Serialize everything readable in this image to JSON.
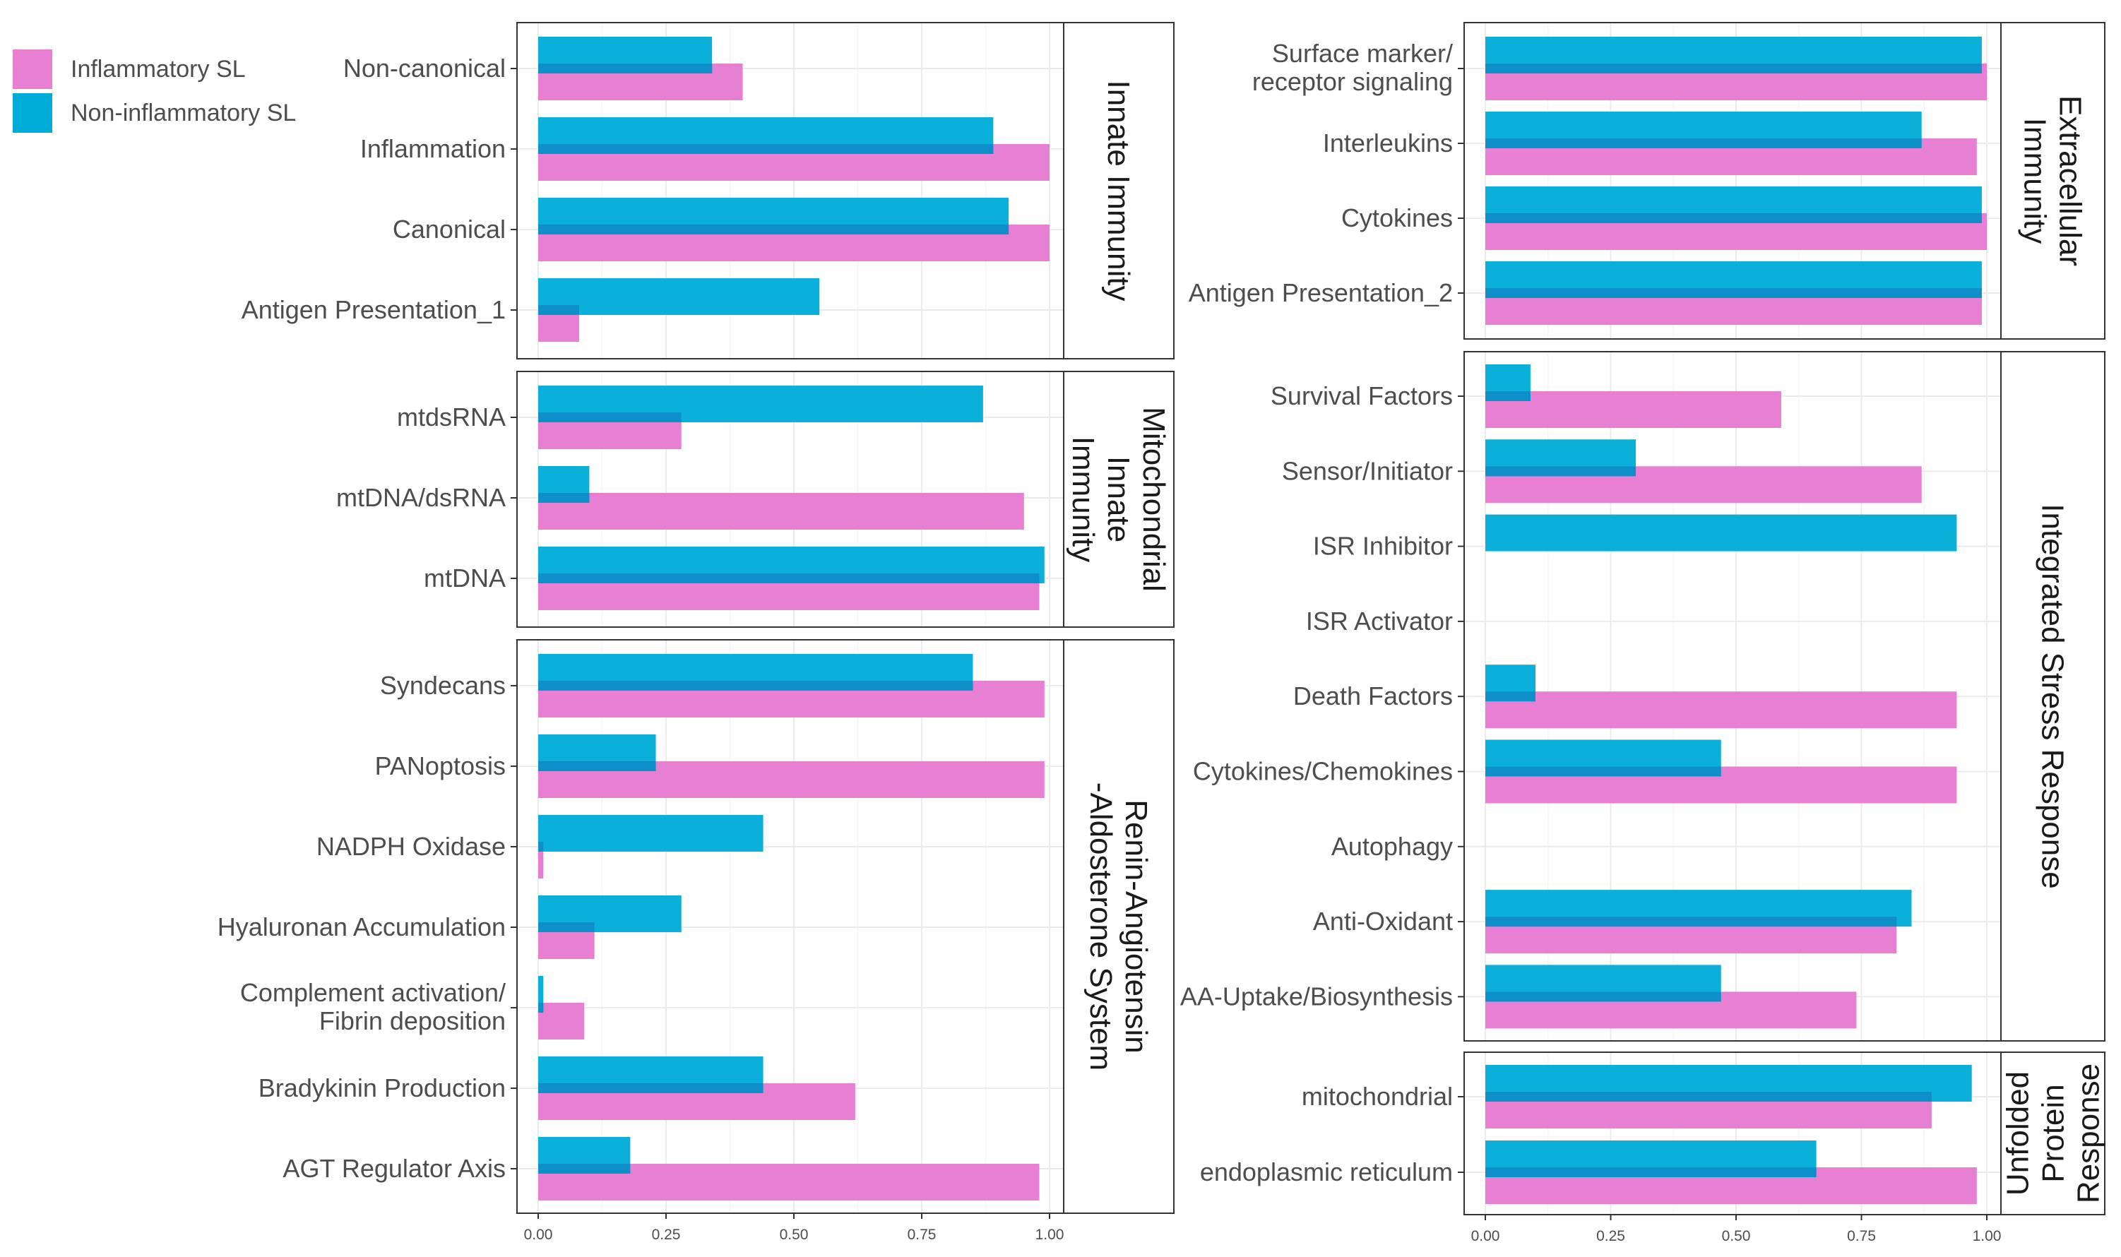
{
  "chart_data": {
    "type": "bar",
    "orientation": "horizontal",
    "series_names": [
      "Inflammatory SL",
      "Non-inflammatory SL"
    ],
    "colors": {
      "Inflammatory SL": "#e77fd2",
      "Non-inflammatory SL": "#00acd8"
    },
    "xlim": [
      0,
      1
    ],
    "x_ticks": [
      "0.00",
      "0.25",
      "0.50",
      "0.75",
      "1.00"
    ],
    "grid": true,
    "legend": {
      "placement": "top-left",
      "entries": [
        "Inflammatory SL",
        "Non-inflammatory SL"
      ]
    },
    "panels": [
      {
        "facet": "Innate Immunity",
        "categories": [
          "Non-canonical",
          "Inflammation",
          "Canonical",
          "Antigen Presentation_1"
        ],
        "inflammatory": [
          0.4,
          1.0,
          1.0,
          0.08
        ],
        "non_inflammatory": [
          0.34,
          0.89,
          0.92,
          0.55
        ]
      },
      {
        "facet": "Mitochondrial Innate Immunity",
        "categories": [
          "mtdsRNA",
          "mtDNA/dsRNA",
          "mtDNA"
        ],
        "inflammatory": [
          0.28,
          0.95,
          0.98
        ],
        "non_inflammatory": [
          0.87,
          0.1,
          0.99
        ]
      },
      {
        "facet": "Renin-Angiotensin -Aldosterone System",
        "categories": [
          "Syndecans",
          "PANoptosis",
          "NADPH Oxidase",
          "Hyaluronan Accumulation",
          "Complement activation/ Fibrin deposition",
          "Bradykinin Production",
          "AGT Regulator Axis"
        ],
        "inflammatory": [
          0.99,
          0.99,
          0.01,
          0.11,
          0.09,
          0.62,
          0.98
        ],
        "non_inflammatory": [
          0.85,
          0.23,
          0.44,
          0.28,
          0.01,
          0.44,
          0.18
        ]
      },
      {
        "facet": "Extracellular Immunity",
        "categories": [
          "Surface marker/ receptor signaling",
          "Interleukins",
          "Cytokines",
          "Antigen Presentation_2"
        ],
        "inflammatory": [
          1.0,
          0.98,
          1.0,
          0.99
        ],
        "non_inflammatory": [
          0.99,
          0.87,
          0.99,
          0.99
        ]
      },
      {
        "facet": "Integrated Stress Response",
        "categories": [
          "Survival Factors",
          "Sensor/Initiator",
          "ISR Inhibitor",
          "ISR Activator",
          "Death Factors",
          "Cytokines/Chemokines",
          "Autophagy",
          "Anti-Oxidant",
          "AA-Uptake/Biosynthesis"
        ],
        "inflammatory": [
          0.59,
          0.87,
          0,
          0,
          0.94,
          0.94,
          0,
          0.82,
          0.74
        ],
        "non_inflammatory": [
          0.09,
          0.3,
          0.94,
          0,
          0.1,
          0.47,
          0,
          0.85,
          0.47
        ]
      },
      {
        "facet": "Unfolded Protein Response",
        "categories": [
          "mitochondrial",
          "endoplasmic reticulum"
        ],
        "inflammatory": [
          0.89,
          0.98
        ],
        "non_inflammatory": [
          0.97,
          0.66
        ]
      }
    ]
  }
}
